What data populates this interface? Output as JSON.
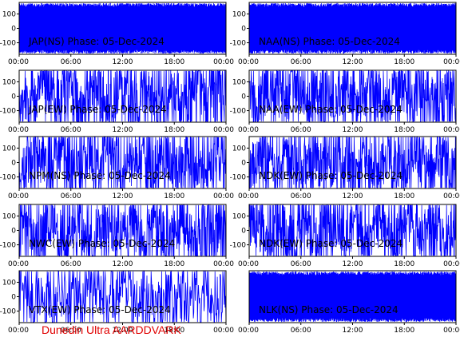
{
  "footer": "Dunedin Ultra AARDDVARK",
  "colors": {
    "trace": "#0000ff",
    "frame": "#000000",
    "background": "#ffffff",
    "footer": "#e00000"
  },
  "chart_data": [
    {
      "type": "line",
      "title": "JAP(NS) Phase: 05-Dec-2024",
      "x_ticks": [
        "00:00",
        "06:00",
        "12:00",
        "18:00",
        "00:00"
      ],
      "y_ticks": [
        "100",
        "0",
        "-100"
      ],
      "ylim": [
        -180,
        180
      ],
      "xlim": [
        0,
        24
      ],
      "density": "saturated"
    },
    {
      "type": "line",
      "title": "NAA(NS) Phase: 05-Dec-2024",
      "x_ticks": [
        "00:00",
        "06:00",
        "12:00",
        "18:00",
        "00:00"
      ],
      "y_ticks": [
        "100",
        "0",
        "-100"
      ],
      "ylim": [
        -180,
        180
      ],
      "xlim": [
        0,
        24
      ],
      "density": "saturated"
    },
    {
      "type": "line",
      "title": "JAP(EW) Phase: 05-Dec-2024",
      "x_ticks": [
        "00:00",
        "06:00",
        "12:00",
        "18:00",
        "00:00"
      ],
      "y_ticks": [
        "100",
        "0",
        "-100"
      ],
      "ylim": [
        -180,
        180
      ],
      "xlim": [
        0,
        24
      ],
      "density": "dense"
    },
    {
      "type": "line",
      "title": "NAA(EW) Phase: 05-Dec-2024",
      "x_ticks": [
        "00:00",
        "06:00",
        "12:00",
        "18:00",
        "00:00"
      ],
      "y_ticks": [
        "100",
        "0",
        "-100"
      ],
      "ylim": [
        -180,
        180
      ],
      "xlim": [
        0,
        24
      ],
      "density": "dense"
    },
    {
      "type": "line",
      "title": "NPM(NS) Phase: 05-Dec-2024",
      "x_ticks": [
        "00:00",
        "06:00",
        "12:00",
        "18:00",
        "00:00"
      ],
      "y_ticks": [
        "100",
        "0",
        "-100"
      ],
      "ylim": [
        -180,
        180
      ],
      "xlim": [
        0,
        24
      ],
      "density": "dense"
    },
    {
      "type": "line",
      "title": "NDK(EW) Phase: 05-Dec-2024",
      "x_ticks": [
        "00:00",
        "06:00",
        "12:00",
        "18:00",
        "00:00"
      ],
      "y_ticks": [
        "100",
        "0",
        "-100"
      ],
      "ylim": [
        -180,
        180
      ],
      "xlim": [
        0,
        24
      ],
      "density": "dense"
    },
    {
      "type": "line",
      "title": "NWC(EW) Phase: 05-Dec-2024",
      "x_ticks": [
        "00:00",
        "06:00",
        "12:00",
        "18:00",
        "00:00"
      ],
      "y_ticks": [
        "100",
        "0",
        "-100"
      ],
      "ylim": [
        -180,
        180
      ],
      "xlim": [
        0,
        24
      ],
      "density": "dense"
    },
    {
      "type": "line",
      "title": "NDK(EW) Phase: 05-Dec-2024",
      "x_ticks": [
        "00:00",
        "06:00",
        "12:00",
        "18:00",
        "00:00"
      ],
      "y_ticks": [
        "100",
        "0",
        "-100"
      ],
      "ylim": [
        -180,
        180
      ],
      "xlim": [
        0,
        24
      ],
      "density": "dense"
    },
    {
      "type": "line",
      "title": "VTX(EW) Phase: 05-Dec-2024",
      "x_ticks": [
        "00:00",
        "06:00",
        "12:00",
        "18:00",
        "00:00"
      ],
      "y_ticks": [
        "100",
        "0",
        "-100"
      ],
      "ylim": [
        -180,
        180
      ],
      "xlim": [
        0,
        24
      ],
      "density": "medium"
    },
    {
      "type": "line",
      "title": "NLK(NS) Phase: 05-Dec-2024",
      "x_ticks": [
        "00:00",
        "06:00",
        "12:00",
        "18:00",
        "00:00"
      ],
      "y_ticks": [],
      "ylim": [
        -180,
        180
      ],
      "xlim": [
        0,
        24
      ],
      "density": "saturated"
    }
  ]
}
